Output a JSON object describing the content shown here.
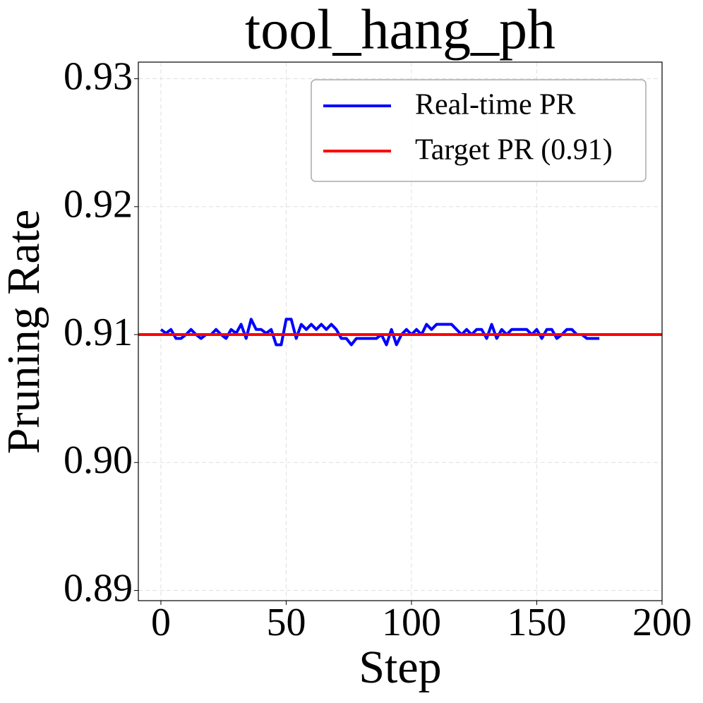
{
  "chart_data": {
    "type": "line",
    "title": "tool_hang_ph",
    "x_label": "Step",
    "y_label": "Pruning Rate",
    "x": [
      0,
      2,
      4,
      6,
      8,
      10,
      12,
      14,
      16,
      18,
      20,
      22,
      24,
      26,
      28,
      30,
      32,
      34,
      36,
      38,
      40,
      42,
      44,
      46,
      48,
      50,
      52,
      54,
      56,
      58,
      60,
      62,
      64,
      66,
      68,
      70,
      72,
      74,
      76,
      78,
      80,
      82,
      84,
      86,
      88,
      90,
      92,
      94,
      96,
      98,
      100,
      102,
      104,
      106,
      108,
      110,
      112,
      114,
      116,
      118,
      120,
      122,
      124,
      126,
      128,
      130,
      132,
      134,
      136,
      138,
      140,
      142,
      144,
      146,
      148,
      150,
      152,
      154,
      156,
      158,
      160,
      162,
      164,
      166,
      168,
      170,
      172,
      174,
      175
    ],
    "series": [
      {
        "name": "Real-time PR",
        "color": "#0000ff",
        "values": [
          0.9104,
          0.9101,
          0.9104,
          0.9097,
          0.9097,
          0.91,
          0.9104,
          0.91,
          0.9097,
          0.91,
          0.91,
          0.9104,
          0.91,
          0.9097,
          0.9104,
          0.9101,
          0.9108,
          0.9097,
          0.9112,
          0.9104,
          0.9104,
          0.9101,
          0.9104,
          0.9092,
          0.9092,
          0.9112,
          0.9112,
          0.9097,
          0.9108,
          0.9104,
          0.9108,
          0.9104,
          0.9108,
          0.9104,
          0.9108,
          0.9104,
          0.9097,
          0.9097,
          0.9092,
          0.9097,
          0.9097,
          0.9097,
          0.9097,
          0.9097,
          0.91,
          0.9092,
          0.9104,
          0.9092,
          0.91,
          0.9104,
          0.91,
          0.9104,
          0.91,
          0.9108,
          0.9104,
          0.9108,
          0.9108,
          0.9108,
          0.9108,
          0.9104,
          0.91,
          0.9104,
          0.91,
          0.9104,
          0.9104,
          0.9097,
          0.9108,
          0.9097,
          0.9104,
          0.91,
          0.9104,
          0.9104,
          0.9104,
          0.9104,
          0.91,
          0.9104,
          0.9097,
          0.9104,
          0.9104,
          0.9097,
          0.91,
          0.9104,
          0.9104,
          0.91,
          0.91,
          0.9097,
          0.9097,
          0.9097,
          0.9097
        ]
      },
      {
        "name": "Target PR (0.91)",
        "color": "#ff0000",
        "hline": 0.91
      }
    ],
    "xlim": [
      -9,
      200
    ],
    "ylim": [
      0.8892,
      0.9313
    ],
    "xticks": [
      0,
      50,
      100,
      150,
      200
    ],
    "yticks": [
      0.89,
      {
        "value": 0.9,
        "label": "0.90"
      },
      0.91,
      0.92,
      0.93
    ],
    "grid": true,
    "legend": "upper right"
  }
}
